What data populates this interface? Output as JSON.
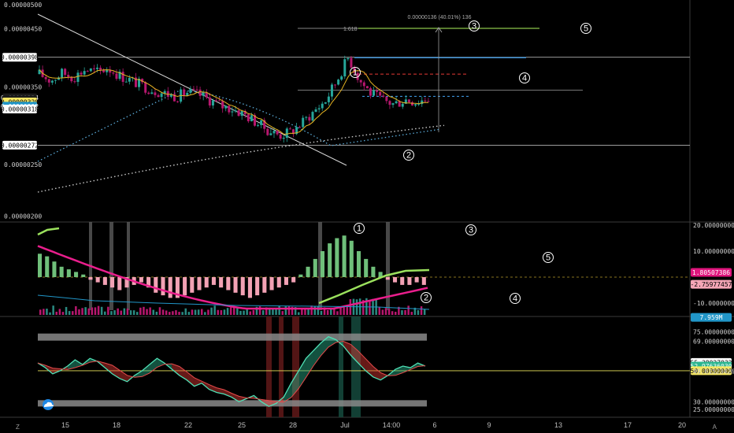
{
  "chart_data": [
    {
      "type": "line",
      "panel": "price",
      "y_scale": "log",
      "ylim": [
        1.95e-06,
        5.1e-06
      ],
      "y_ticks": [
        "0.00000500",
        "0.00000450",
        "0.00000350",
        "0.00000250",
        "0.00000200"
      ],
      "price_tags": [
        {
          "label": "0.00000398",
          "value": 3.98e-06,
          "style": "white"
        },
        {
          "label": "0.00000334",
          "value": 3.34e-06,
          "style": "dark"
        },
        {
          "label": "03:09:30",
          "value": 3.31e-06,
          "style": "dark"
        },
        {
          "label": "0.00000328",
          "value": 3.28e-06,
          "style": "yellow"
        },
        {
          "label": "0.00000322",
          "value": 3.22e-06,
          "style": "blue"
        },
        {
          "label": "0.00000318",
          "value": 3.18e-06,
          "style": "white"
        },
        {
          "label": "0.00000272",
          "value": 2.72e-06,
          "style": "white"
        }
      ],
      "fib_label": "1.618",
      "measure_label": "0.00000136 (40.01%) 136",
      "wave_labels": [
        "1",
        "2",
        "3",
        "4",
        "5"
      ],
      "close_trend": [
        3.7e-06,
        3.6e-06,
        3.72e-06,
        3.65e-06,
        3.78e-06,
        3.73e-06,
        3.8e-06,
        3.68e-06,
        3.6e-06,
        3.52e-06,
        3.45e-06,
        3.4e-06,
        3.36e-06,
        3.42e-06,
        3.38e-06,
        3.3e-06,
        3.22e-06,
        3.18e-06,
        3.1e-06,
        3e-06,
        2.9e-06,
        2.84e-06,
        2.88e-06,
        3e-06,
        3.15e-06,
        3.3e-06,
        3.6e-06,
        3.98e-06,
        3.6e-06,
        3.4e-06,
        3.3e-06,
        3.25e-06,
        3.32e-06,
        3.28e-06,
        3.34e-06
      ]
    },
    {
      "type": "bar",
      "panel": "momentum",
      "y_ticks": [
        "20.00000000",
        "10.00000000",
        "-10.00000000"
      ],
      "value_tags": [
        {
          "label": "1.80507386",
          "value": 1.80507386,
          "color": "#e0157d"
        },
        {
          "label": "-2.75977457",
          "value": -2.75977457,
          "color": "#f4a6b6"
        },
        {
          "label": "7.959M",
          "value": -15.5,
          "color": "#2196c8"
        }
      ],
      "wave_labels": [
        "1",
        "2",
        "3",
        "4",
        "5"
      ],
      "histogram_values": [
        9,
        8,
        6,
        4,
        3,
        2,
        1,
        -1,
        -2,
        -3,
        -4,
        -5,
        -4,
        -3,
        -2,
        -4,
        -6,
        -7,
        -8,
        -8,
        -7,
        -6,
        -5,
        -4,
        -3,
        -4,
        -5,
        -6,
        -7,
        -8,
        -7,
        -6,
        -5,
        -4,
        -3,
        -2,
        1,
        4,
        7,
        10,
        13,
        15,
        16,
        14,
        10,
        7,
        4,
        2,
        -1,
        -2,
        -3,
        -3,
        -2,
        -3
      ]
    },
    {
      "type": "area",
      "panel": "oscillator",
      "ylim": [
        20,
        85
      ],
      "y_ticks": [
        {
          "label": "75.00000000",
          "value": 75
        },
        {
          "label": "69.00000000",
          "value": 69
        },
        {
          "label": "55.38027032",
          "value": 55.38027032
        },
        {
          "label": "52.97636030",
          "value": 52.9763603
        },
        {
          "label": "50.00000000",
          "value": 50
        },
        {
          "label": "49.61523426",
          "value": 49.61523426
        },
        {
          "label": "30.00000000",
          "value": 30
        },
        {
          "label": "25.00000000",
          "value": 25
        }
      ],
      "hidden_ticks": [
        "80.00000000",
        "60.00000000",
        "40.00000000"
      ],
      "series_values": [
        55,
        52,
        48,
        50,
        53,
        57,
        54,
        58,
        56,
        52,
        48,
        45,
        43,
        47,
        50,
        54,
        58,
        55,
        51,
        47,
        44,
        40,
        42,
        38,
        36,
        35,
        33,
        30,
        32,
        34,
        30,
        27,
        29,
        33,
        42,
        50,
        58,
        63,
        68,
        72,
        70,
        66,
        60,
        55,
        50,
        46,
        44,
        47,
        51,
        53,
        52,
        55,
        53
      ],
      "bands": [
        {
          "label": "upper",
          "value": 72
        },
        {
          "label": "lower",
          "value": 30
        }
      ],
      "midline": 50
    }
  ],
  "x_axis": {
    "labels": [
      {
        "label": "15",
        "x": 83
      },
      {
        "label": "18",
        "x": 148
      },
      {
        "label": "22",
        "x": 239
      },
      {
        "label": "25",
        "x": 307
      },
      {
        "label": "28",
        "x": 372
      },
      {
        "label": "Jul",
        "x": 438
      },
      {
        "label": "14:00",
        "x": 497
      },
      {
        "label": "6",
        "x": 552
      },
      {
        "label": "9",
        "x": 621
      },
      {
        "label": "13",
        "x": 709
      },
      {
        "label": "17",
        "x": 797
      },
      {
        "label": "20",
        "x": 866
      }
    ]
  },
  "corners": {
    "left": "Z",
    "right": "A"
  },
  "colors": {
    "up_candle": "#26a69a",
    "down_candle": "#b7176e",
    "macd_line": "#e91e8c",
    "signal_green": "#9be15d",
    "fib_green": "#8bc34a",
    "blue_line": "#42a5f5",
    "sma_yellow": "#e6b422",
    "osc_red": "#e53935",
    "osc_green": "#2bb58f"
  }
}
